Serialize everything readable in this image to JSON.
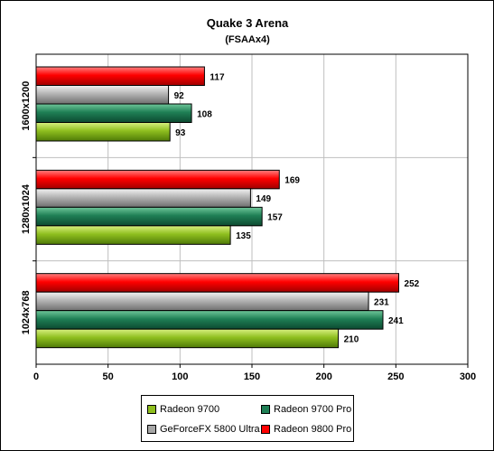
{
  "chart_data": {
    "type": "bar",
    "orientation": "horizontal",
    "title": "Quake 3 Arena",
    "subtitle": "(FSAAx4)",
    "categories": [
      "1600x1200",
      "1280x1024",
      "1024x768"
    ],
    "series": [
      {
        "name": "Radeon 9800 Pro",
        "color": "#ff0000",
        "values": [
          117,
          169,
          252
        ]
      },
      {
        "name": "GeForceFX 5800 Ultra",
        "color": "#a6a6a6",
        "values": [
          92,
          149,
          231
        ]
      },
      {
        "name": "Radeon 9700 Pro",
        "color": "#1f7f55",
        "values": [
          108,
          157,
          241
        ]
      },
      {
        "name": "Radeon 9700",
        "color": "#8fbf1f",
        "values": [
          93,
          135,
          210
        ]
      }
    ],
    "xlim": [
      0,
      300
    ],
    "xticks": [
      0,
      50,
      100,
      150,
      200,
      250,
      300
    ],
    "grid": true,
    "legend_placement": "bottom",
    "legend_order": [
      "Radeon 9700",
      "Radeon 9700 Pro",
      "GeForceFX 5800 Ultra",
      "Radeon 9800 Pro"
    ]
  }
}
